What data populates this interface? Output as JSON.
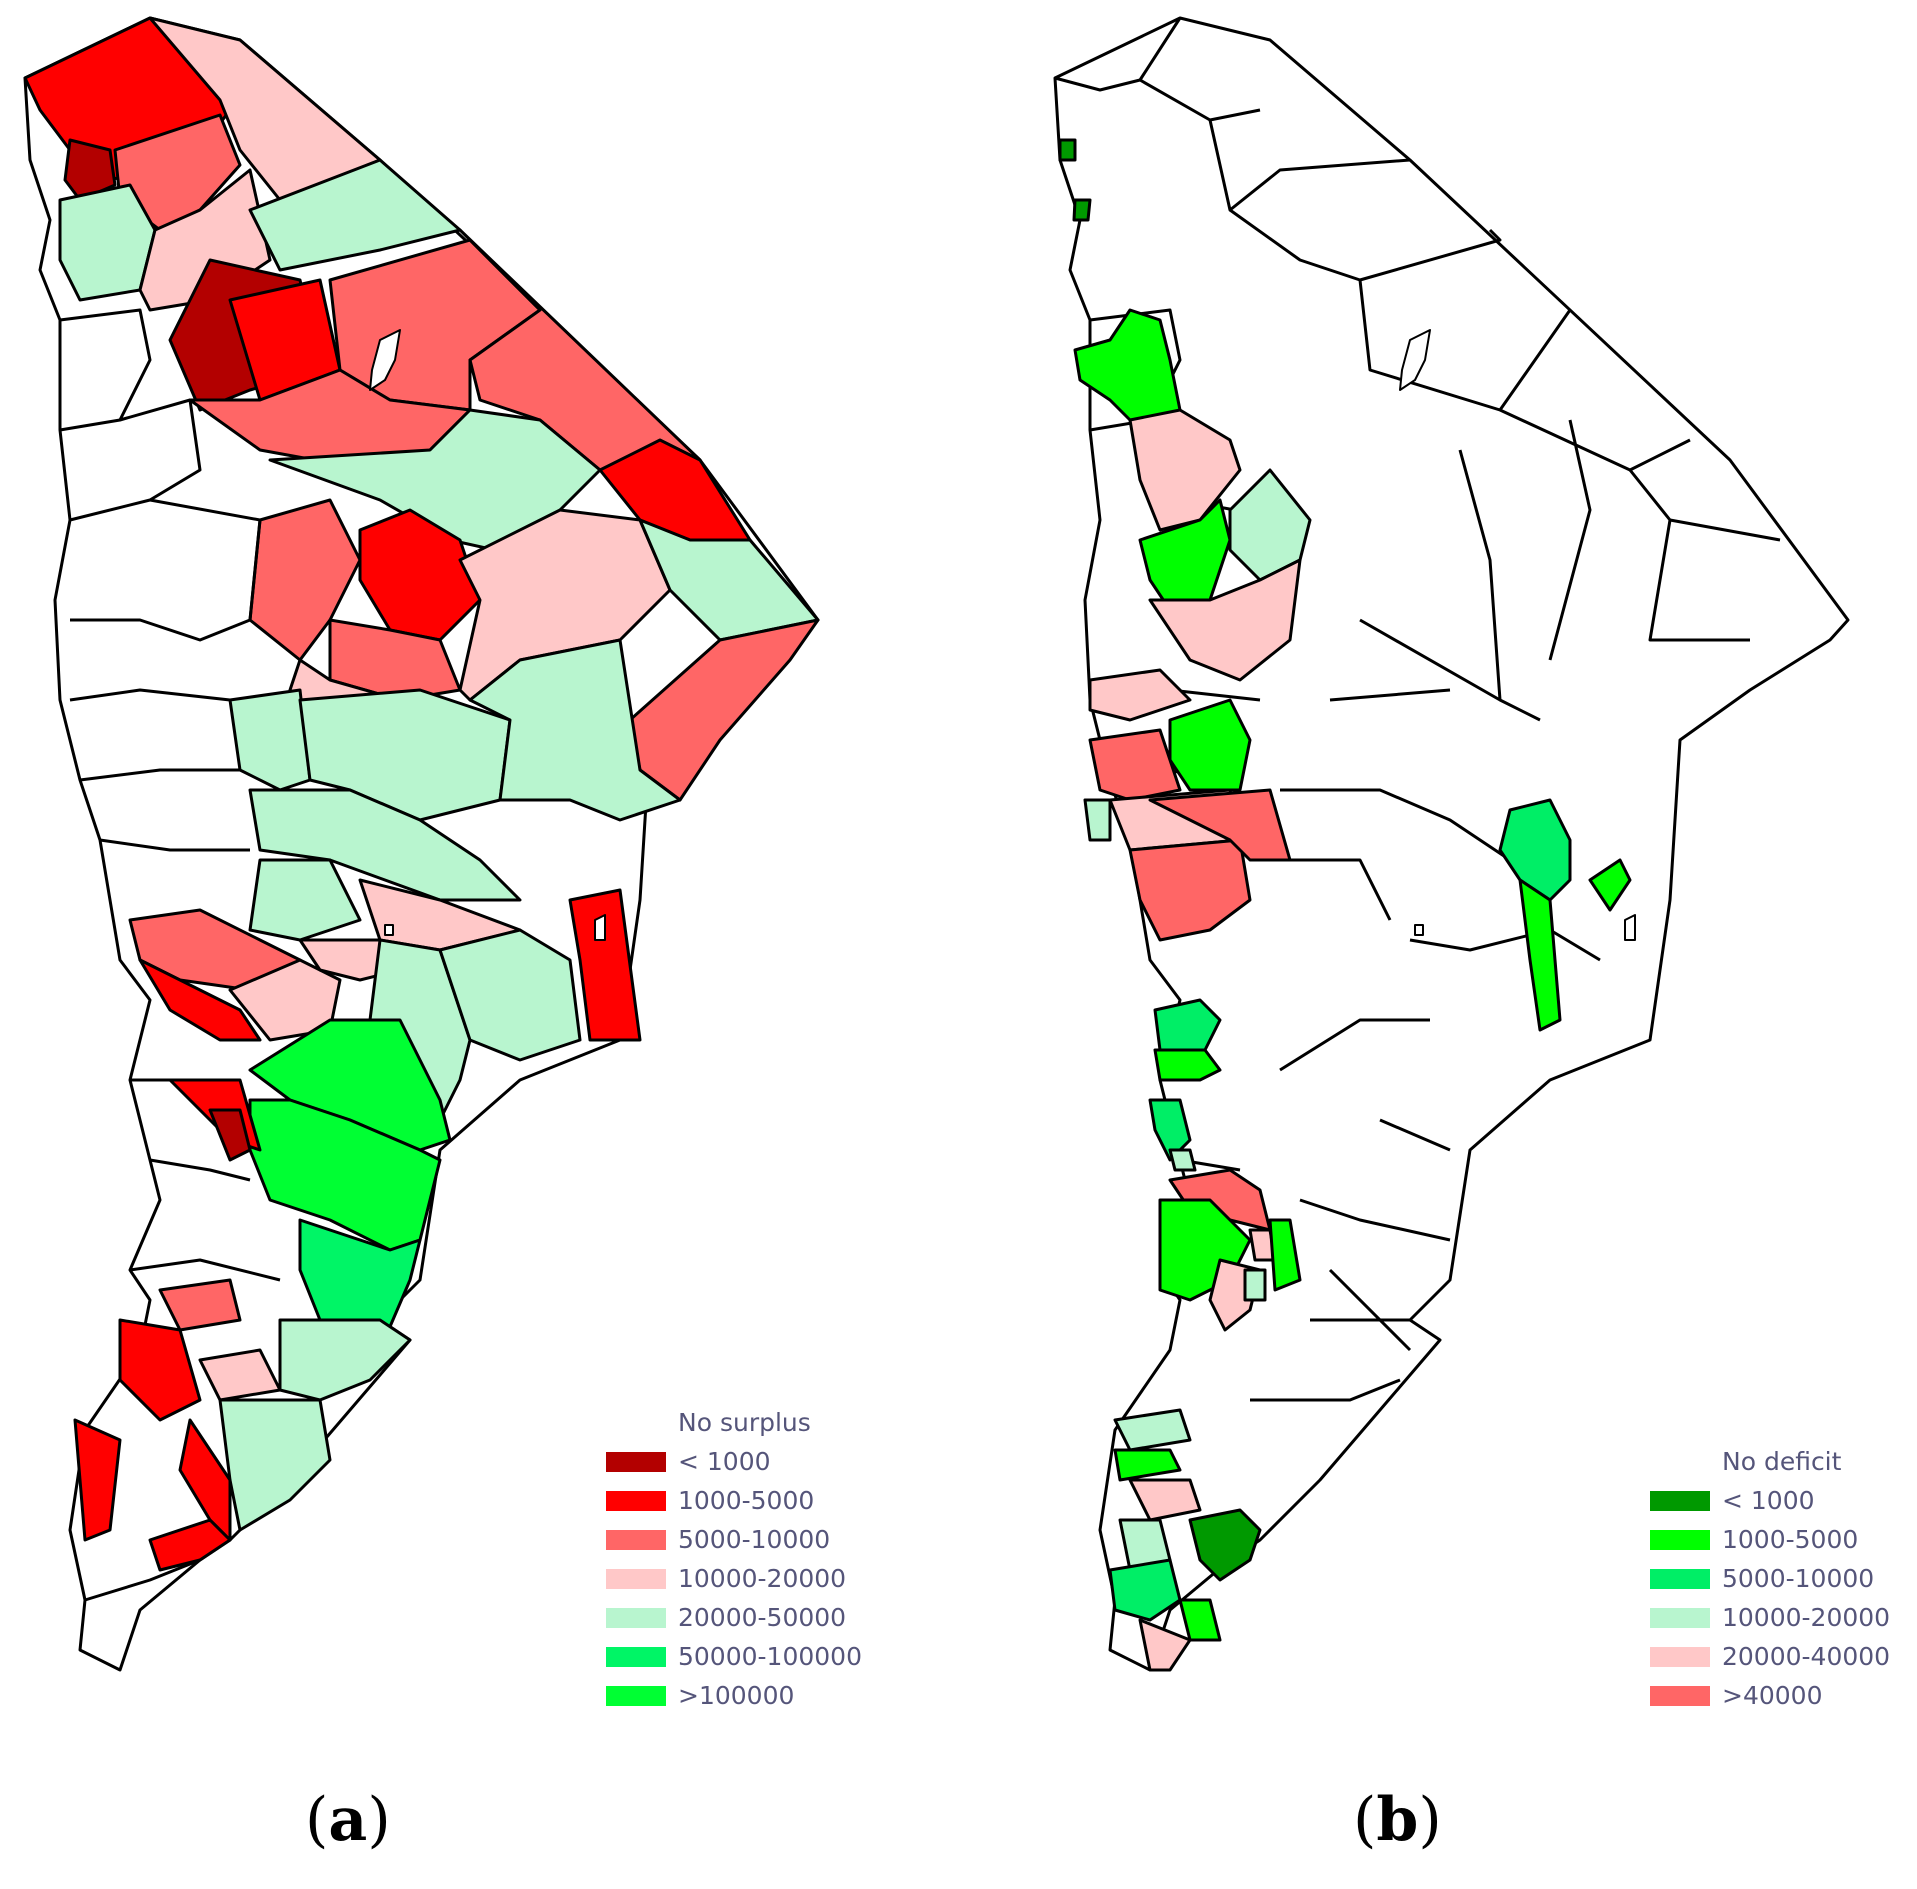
{
  "panel_a": {
    "legend_title": "No surplus",
    "legend": [
      {
        "label": "< 1000",
        "color": "#b30000"
      },
      {
        "label": "1000-5000",
        "color": "#ff0000"
      },
      {
        "label": "5000-10000",
        "color": "#ff6666"
      },
      {
        "label": "10000-20000",
        "color": "#ffc8c8"
      },
      {
        "label": "20000-50000",
        "color": "#b8f5cf"
      },
      {
        "label": "50000-100000",
        "color": "#00f566"
      },
      {
        "label": ">100000",
        "color": "#00ff33"
      }
    ],
    "caption_letter": "a"
  },
  "panel_b": {
    "legend_title": "No deficit",
    "legend": [
      {
        "label": "< 1000",
        "color": "#009900"
      },
      {
        "label": "1000-5000",
        "color": "#00ff00"
      },
      {
        "label": "5000-10000",
        "color": "#00ee66"
      },
      {
        "label": "10000-20000",
        "color": "#b8f5cf"
      },
      {
        "label": "20000-40000",
        "color": "#ffc8c8"
      },
      {
        "label": ">40000",
        "color": "#ff6666"
      }
    ],
    "caption_letter": "b"
  },
  "caption_open": "(",
  "caption_close": ")"
}
